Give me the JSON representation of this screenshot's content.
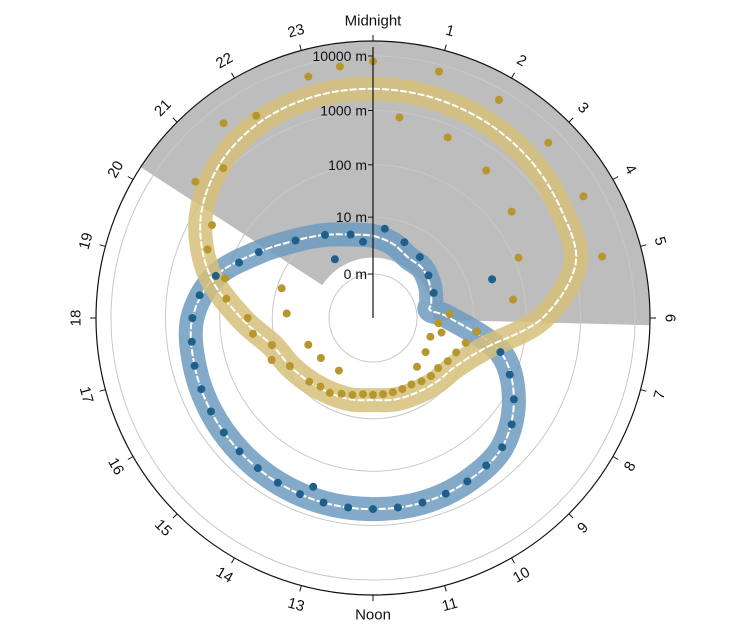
{
  "chart_data": {
    "type": "scatter",
    "subtype": "polar-24h-clock",
    "hour_labels": [
      "Midnight",
      "1",
      "2",
      "3",
      "4",
      "5",
      "6",
      "7",
      "8",
      "9",
      "10",
      "11",
      "Noon",
      "13",
      "14",
      "15",
      "16",
      "17",
      "18",
      "19",
      "20",
      "21",
      "22",
      "23"
    ],
    "radial_axis": {
      "scale": "log",
      "tick_labels": [
        "0 m",
        "10 m",
        "100 m",
        "1000 m",
        "10000 m"
      ],
      "tick_values": [
        0,
        10,
        100,
        1000,
        10000
      ]
    },
    "night_shading": {
      "start_hour": 20.2,
      "end_hour": 6.1,
      "color": "#bdbdbd"
    },
    "grid": true,
    "series": [
      {
        "color": "#1f5f8b",
        "band_color": "#6f9bbf",
        "ribbon": [
          {
            "hour": 0,
            "depth": 4
          },
          {
            "hour": 1,
            "depth": 3
          },
          {
            "hour": 2,
            "depth": 2
          },
          {
            "hour": 3,
            "depth": 2
          },
          {
            "hour": 4,
            "depth": 1.5
          },
          {
            "hour": 5,
            "depth": 1
          },
          {
            "hour": 5.5,
            "depth": 0.8
          },
          {
            "hour": 6,
            "depth": 3
          },
          {
            "hour": 7,
            "depth": 40
          },
          {
            "hour": 8,
            "depth": 150
          },
          {
            "hour": 9,
            "depth": 350
          },
          {
            "hour": 10,
            "depth": 450
          },
          {
            "hour": 11,
            "depth": 500
          },
          {
            "hour": 12,
            "depth": 500
          },
          {
            "hour": 13,
            "depth": 500
          },
          {
            "hour": 14,
            "depth": 480
          },
          {
            "hour": 15,
            "depth": 450
          },
          {
            "hour": 16,
            "depth": 420
          },
          {
            "hour": 17,
            "depth": 380
          },
          {
            "hour": 18,
            "depth": 320
          },
          {
            "hour": 19,
            "depth": 150
          },
          {
            "hour": 20,
            "depth": 40
          },
          {
            "hour": 21,
            "depth": 15
          },
          {
            "hour": 22,
            "depth": 8
          },
          {
            "hour": 23,
            "depth": 5
          },
          {
            "hour": 24,
            "depth": 4
          }
        ],
        "points": [
          {
            "hour": 0.5,
            "depth": 6
          },
          {
            "hour": 1.5,
            "depth": 4
          },
          {
            "hour": 2.5,
            "depth": 3
          },
          {
            "hour": 3.5,
            "depth": 2
          },
          {
            "hour": 4.5,
            "depth": 1.5
          },
          {
            "hour": 6.5,
            "depth": 12
          },
          {
            "hour": 7,
            "depth": 40
          },
          {
            "hour": 7.5,
            "depth": 80
          },
          {
            "hour": 8,
            "depth": 150
          },
          {
            "hour": 8.5,
            "depth": 250
          },
          {
            "hour": 9,
            "depth": 350
          },
          {
            "hour": 9.5,
            "depth": 400
          },
          {
            "hour": 10,
            "depth": 450
          },
          {
            "hour": 10.5,
            "depth": 480
          },
          {
            "hour": 11,
            "depth": 500
          },
          {
            "hour": 11.5,
            "depth": 500
          },
          {
            "hour": 12,
            "depth": 500
          },
          {
            "hour": 12.5,
            "depth": 500
          },
          {
            "hour": 13,
            "depth": 500
          },
          {
            "hour": 13.5,
            "depth": 490
          },
          {
            "hour": 14,
            "depth": 480
          },
          {
            "hour": 14.5,
            "depth": 460
          },
          {
            "hour": 15,
            "depth": 450
          },
          {
            "hour": 15.5,
            "depth": 440
          },
          {
            "hour": 16,
            "depth": 420
          },
          {
            "hour": 16.5,
            "depth": 400
          },
          {
            "hour": 17,
            "depth": 380
          },
          {
            "hour": 17.5,
            "depth": 350
          },
          {
            "hour": 18,
            "depth": 320
          },
          {
            "hour": 18.5,
            "depth": 250
          },
          {
            "hour": 19,
            "depth": 150
          },
          {
            "hour": 19.5,
            "depth": 70
          },
          {
            "hour": 20,
            "depth": 40
          },
          {
            "hour": 21,
            "depth": 15
          },
          {
            "hour": 22,
            "depth": 8
          },
          {
            "hour": 23,
            "depth": 5
          },
          {
            "hour": 4.8,
            "depth": 30
          },
          {
            "hour": 21.8,
            "depth": 2
          },
          {
            "hour": 23.5,
            "depth": 3
          },
          {
            "hour": 13.3,
            "depth": 300
          }
        ]
      },
      {
        "color": "#b8962e",
        "band_color": "#d6bf7a",
        "ribbon": [
          {
            "hour": 0,
            "depth": 2500
          },
          {
            "hour": 1,
            "depth": 2400
          },
          {
            "hour": 2,
            "depth": 2200
          },
          {
            "hour": 3,
            "depth": 1900
          },
          {
            "hour": 4,
            "depth": 1500
          },
          {
            "hour": 5,
            "depth": 1100
          },
          {
            "hour": 6,
            "depth": 200
          },
          {
            "hour": 7,
            "depth": 20
          },
          {
            "hour": 8,
            "depth": 8
          },
          {
            "hour": 9,
            "depth": 6
          },
          {
            "hour": 10,
            "depth": 5
          },
          {
            "hour": 11,
            "depth": 4.5
          },
          {
            "hour": 12,
            "depth": 4
          },
          {
            "hour": 13,
            "depth": 4.5
          },
          {
            "hour": 14,
            "depth": 5
          },
          {
            "hour": 15,
            "depth": 6
          },
          {
            "hour": 16,
            "depth": 8
          },
          {
            "hour": 17,
            "depth": 12
          },
          {
            "hour": 18,
            "depth": 40
          },
          {
            "hour": 19,
            "depth": 200
          },
          {
            "hour": 20,
            "depth": 700
          },
          {
            "hour": 21,
            "depth": 1500
          },
          {
            "hour": 22,
            "depth": 2200
          },
          {
            "hour": 23,
            "depth": 2500
          },
          {
            "hour": 24,
            "depth": 2500
          }
        ],
        "points": [
          {
            "hour": 0,
            "depth": 8000
          },
          {
            "hour": 1,
            "depth": 7500
          },
          {
            "hour": 2,
            "depth": 6500
          },
          {
            "hour": 3,
            "depth": 5500
          },
          {
            "hour": 4,
            "depth": 4500
          },
          {
            "hour": 5,
            "depth": 3500
          },
          {
            "hour": 0.5,
            "depth": 800
          },
          {
            "hour": 1.5,
            "depth": 600
          },
          {
            "hour": 2.5,
            "depth": 400
          },
          {
            "hour": 3.5,
            "depth": 250
          },
          {
            "hour": 4.5,
            "depth": 120
          },
          {
            "hour": 5.5,
            "depth": 60
          },
          {
            "hour": 6.5,
            "depth": 12
          },
          {
            "hour": 7,
            "depth": 8
          },
          {
            "hour": 7.5,
            "depth": 6
          },
          {
            "hour": 8,
            "depth": 5
          },
          {
            "hour": 8.5,
            "depth": 4
          },
          {
            "hour": 9,
            "depth": 4
          },
          {
            "hour": 9.5,
            "depth": 3.5
          },
          {
            "hour": 10,
            "depth": 3
          },
          {
            "hour": 10.5,
            "depth": 3
          },
          {
            "hour": 11,
            "depth": 3
          },
          {
            "hour": 11.5,
            "depth": 3
          },
          {
            "hour": 12,
            "depth": 3
          },
          {
            "hour": 12.5,
            "depth": 3
          },
          {
            "hour": 13,
            "depth": 3.5
          },
          {
            "hour": 13.5,
            "depth": 4
          },
          {
            "hour": 14,
            "depth": 5
          },
          {
            "hour": 14.5,
            "depth": 5
          },
          {
            "hour": 15,
            "depth": 6
          },
          {
            "hour": 16,
            "depth": 8
          },
          {
            "hour": 17,
            "depth": 12
          },
          {
            "hour": 18,
            "depth": 30
          },
          {
            "hour": 19,
            "depth": 100
          },
          {
            "hour": 20,
            "depth": 400
          },
          {
            "hour": 21,
            "depth": 1200
          },
          {
            "hour": 22,
            "depth": 3000
          },
          {
            "hour": 23,
            "depth": 6000
          },
          {
            "hour": 23.5,
            "depth": 7000
          },
          {
            "hour": 21.5,
            "depth": 5000
          },
          {
            "hour": 20.5,
            "depth": 2000
          },
          {
            "hour": 19.5,
            "depth": 300
          },
          {
            "hour": 18.5,
            "depth": 80
          },
          {
            "hour": 16.5,
            "depth": 2
          },
          {
            "hour": 15.5,
            "depth": 1.5
          },
          {
            "hour": 14.2,
            "depth": 1.2
          },
          {
            "hour": 9.2,
            "depth": 1.5
          },
          {
            "hour": 8.2,
            "depth": 1.2
          },
          {
            "hour": 7.2,
            "depth": 1
          },
          {
            "hour": 6.8,
            "depth": 2
          },
          {
            "hour": 6.3,
            "depth": 1.5
          },
          {
            "hour": 5.8,
            "depth": 3
          },
          {
            "hour": 16.5,
            "depth": 15
          },
          {
            "hour": 17.5,
            "depth": 25
          },
          {
            "hour": 18.2,
            "depth": 5
          },
          {
            "hour": 19.2,
            "depth": 8
          }
        ]
      }
    ]
  }
}
